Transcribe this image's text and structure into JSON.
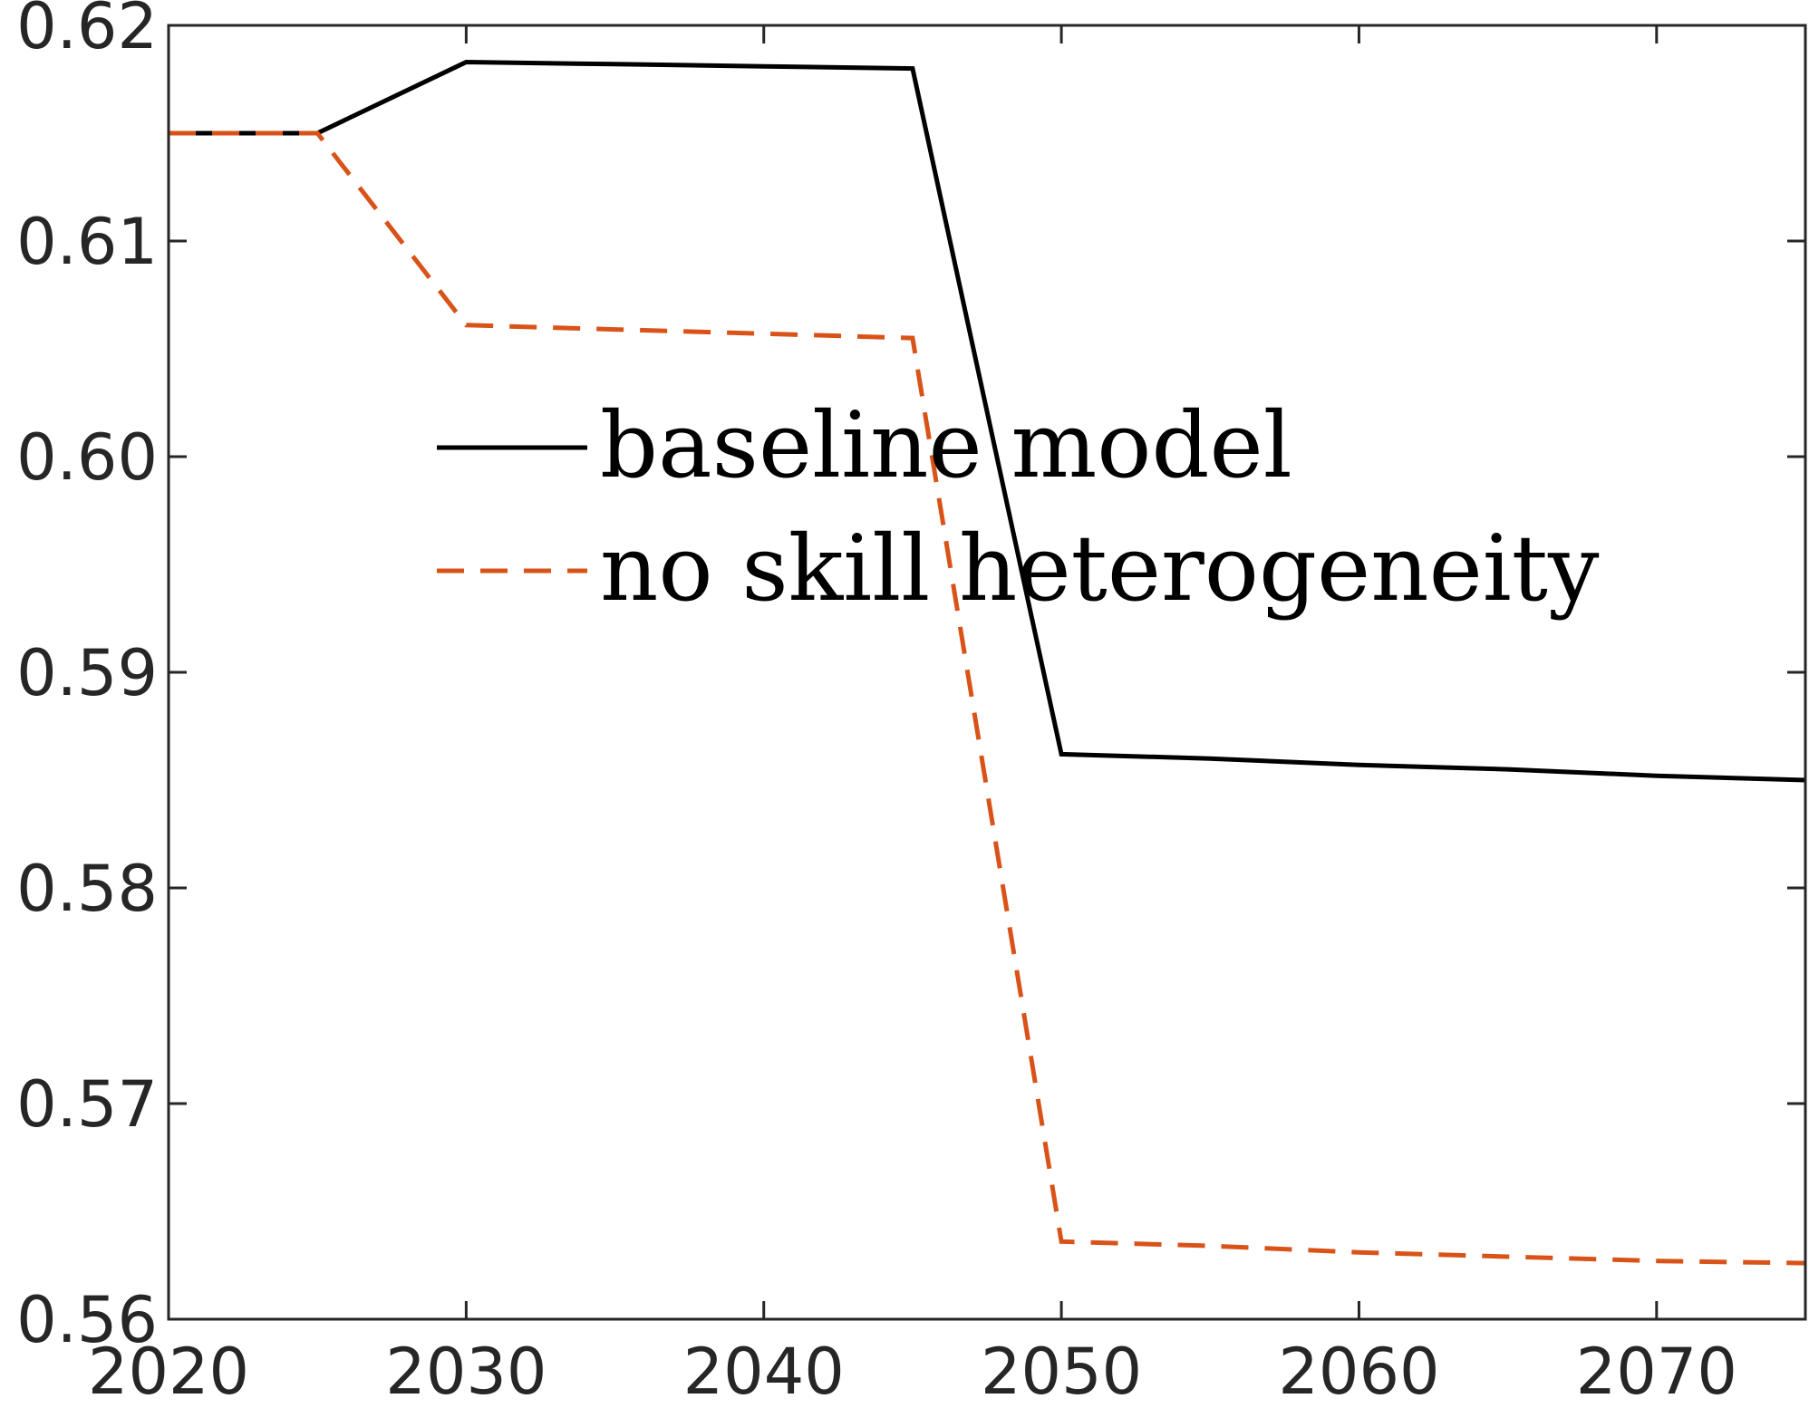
{
  "chart_data": {
    "type": "line",
    "title": "",
    "xlabel": "",
    "ylabel": "",
    "xlim": [
      2020,
      2075
    ],
    "ylim": [
      0.56,
      0.62
    ],
    "grid": false,
    "legend_position": "center",
    "x_ticks": [
      "2020",
      "2030",
      "2040",
      "2050",
      "2060",
      "2070"
    ],
    "y_ticks": [
      "0.56",
      "0.57",
      "0.58",
      "0.59",
      "0.60",
      "0.61",
      "0.62"
    ],
    "x": [
      2020,
      2025,
      2030,
      2035,
      2040,
      2045,
      2050,
      2055,
      2060,
      2065,
      2070,
      2075
    ],
    "series": [
      {
        "name": "baseline model",
        "color": "#000000",
        "style": "solid",
        "values": [
          0.615,
          0.615,
          0.6183,
          0.6182,
          0.6181,
          0.618,
          0.5862,
          0.586,
          0.5857,
          0.5855,
          0.5852,
          0.585
        ]
      },
      {
        "name": "no skill heterogeneity",
        "color": "#D95319",
        "style": "dashed",
        "values": [
          0.615,
          0.615,
          0.6061,
          0.6059,
          0.6057,
          0.6055,
          0.5636,
          0.5634,
          0.5631,
          0.5629,
          0.5627,
          0.5626
        ]
      }
    ]
  }
}
